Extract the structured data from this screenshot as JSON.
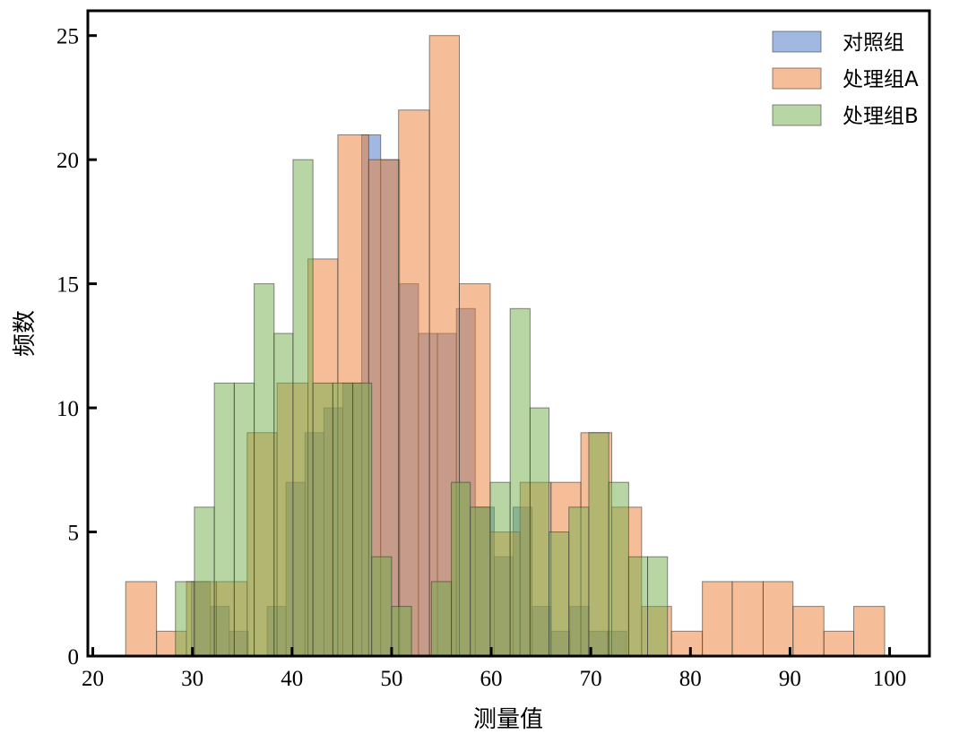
{
  "chart_data": {
    "type": "histogram",
    "title": "",
    "xlabel": "测量值",
    "ylabel": "频数",
    "xlim": [
      19.5,
      104
    ],
    "ylim": [
      0,
      26
    ],
    "xticks": [
      20,
      30,
      40,
      50,
      60,
      70,
      80,
      90,
      100
    ],
    "yticks": [
      0,
      5,
      10,
      15,
      20,
      25
    ],
    "grid": false,
    "legend_position": "top-right",
    "series": [
      {
        "name": "对照组",
        "color": "#4472c4",
        "bins": [
          [
            29.9,
            31.8,
            3
          ],
          [
            31.8,
            33.7,
            2
          ],
          [
            33.7,
            35.6,
            1
          ],
          [
            35.6,
            37.5,
            0
          ],
          [
            37.5,
            39.4,
            2
          ],
          [
            39.4,
            41.3,
            7
          ],
          [
            41.3,
            43.2,
            9
          ],
          [
            43.2,
            45.1,
            10
          ],
          [
            45.1,
            47.0,
            11
          ],
          [
            47.0,
            48.9,
            21
          ],
          [
            48.9,
            50.8,
            20
          ],
          [
            50.8,
            52.7,
            15
          ],
          [
            52.7,
            54.6,
            13
          ],
          [
            54.6,
            56.5,
            13
          ],
          [
            56.5,
            58.4,
            14
          ],
          [
            58.4,
            60.3,
            6
          ],
          [
            60.3,
            62.2,
            4
          ],
          [
            62.2,
            64.1,
            6
          ],
          [
            64.1,
            66.0,
            2
          ],
          [
            66.0,
            67.9,
            1
          ],
          [
            67.9,
            69.8,
            2
          ],
          [
            69.8,
            71.7,
            1
          ],
          [
            71.7,
            73.6,
            1
          ]
        ]
      },
      {
        "name": "处理组A",
        "color": "#ed7d31",
        "bins": [
          [
            23.3,
            26.4,
            3
          ],
          [
            26.4,
            29.4,
            1
          ],
          [
            29.4,
            32.4,
            3
          ],
          [
            32.4,
            35.5,
            3
          ],
          [
            35.5,
            38.5,
            9
          ],
          [
            38.5,
            41.6,
            11
          ],
          [
            41.6,
            44.6,
            16
          ],
          [
            44.6,
            47.7,
            21
          ],
          [
            47.7,
            50.7,
            20
          ],
          [
            50.7,
            53.8,
            22
          ],
          [
            53.8,
            56.8,
            25
          ],
          [
            56.8,
            59.9,
            15
          ],
          [
            59.9,
            62.9,
            5
          ],
          [
            62.9,
            66.0,
            7
          ],
          [
            66.0,
            69.0,
            7
          ],
          [
            69.0,
            72.1,
            9
          ],
          [
            72.1,
            75.1,
            6
          ],
          [
            75.1,
            78.1,
            2
          ],
          [
            78.1,
            81.2,
            1
          ],
          [
            81.2,
            84.2,
            3
          ],
          [
            84.2,
            87.3,
            3
          ],
          [
            87.3,
            90.3,
            3
          ],
          [
            90.3,
            93.4,
            2
          ],
          [
            93.4,
            96.4,
            1
          ],
          [
            96.4,
            99.5,
            2
          ]
        ]
      },
      {
        "name": "处理组B",
        "color": "#70ad47",
        "bins": [
          [
            28.3,
            30.2,
            3
          ],
          [
            30.2,
            32.2,
            6
          ],
          [
            32.2,
            34.2,
            11
          ],
          [
            34.2,
            36.2,
            11
          ],
          [
            36.2,
            38.2,
            15
          ],
          [
            38.2,
            40.1,
            13
          ],
          [
            40.1,
            42.1,
            20
          ],
          [
            42.1,
            44.1,
            11
          ],
          [
            44.1,
            46.1,
            11
          ],
          [
            46.1,
            48.0,
            11
          ],
          [
            48.0,
            50.0,
            4
          ],
          [
            50.0,
            52.0,
            2
          ],
          [
            52.0,
            54.0,
            0
          ],
          [
            54.0,
            56.0,
            3
          ],
          [
            56.0,
            57.9,
            7
          ],
          [
            57.9,
            59.9,
            6
          ],
          [
            59.9,
            61.9,
            7
          ],
          [
            61.9,
            63.9,
            14
          ],
          [
            63.9,
            65.8,
            10
          ],
          [
            65.8,
            67.8,
            5
          ],
          [
            67.8,
            69.8,
            6
          ],
          [
            69.8,
            71.8,
            9
          ],
          [
            71.8,
            73.8,
            7
          ],
          [
            73.8,
            75.7,
            4
          ],
          [
            75.7,
            77.7,
            4
          ]
        ]
      }
    ]
  }
}
